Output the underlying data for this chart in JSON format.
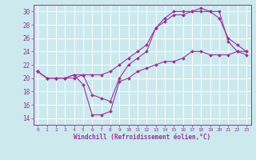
{
  "xlabel": "Windchill (Refroidissement éolien,°C)",
  "bg_color": "#cce9ee",
  "grid_color": "#ffffff",
  "line_color": "#993399",
  "xlim": [
    -0.5,
    23.5
  ],
  "ylim": [
    13,
    31
  ],
  "xticks": [
    0,
    1,
    2,
    3,
    4,
    5,
    6,
    7,
    8,
    9,
    10,
    11,
    12,
    13,
    14,
    15,
    16,
    17,
    18,
    19,
    20,
    21,
    22,
    23
  ],
  "yticks": [
    14,
    16,
    18,
    20,
    22,
    24,
    26,
    28,
    30
  ],
  "line1_x": [
    0,
    1,
    2,
    3,
    4,
    5,
    6,
    7,
    8,
    9,
    10,
    11,
    12,
    13,
    14,
    15,
    16,
    17,
    18,
    19,
    20,
    21,
    22,
    23
  ],
  "line1_y": [
    21,
    20,
    20,
    20,
    20,
    20.5,
    20.5,
    20.5,
    21,
    22,
    23,
    24,
    25,
    27.5,
    28.5,
    29.5,
    29.5,
    30,
    30,
    30,
    30,
    25.5,
    24,
    23.5
  ],
  "line2_x": [
    0,
    1,
    2,
    3,
    4,
    5,
    6,
    7,
    8,
    9,
    10,
    11,
    12,
    13,
    14,
    15,
    16,
    17,
    18,
    19,
    20,
    21,
    22,
    23
  ],
  "line2_y": [
    21,
    20,
    20,
    20,
    20.5,
    20.5,
    17.5,
    17,
    16.5,
    20,
    22,
    23,
    24,
    27.5,
    29,
    30,
    30,
    30,
    30.5,
    30,
    29,
    26,
    25,
    24
  ],
  "line3_x": [
    0,
    1,
    2,
    3,
    4,
    5,
    6,
    7,
    8,
    9,
    10,
    11,
    12,
    13,
    14,
    15,
    16,
    17,
    18,
    19,
    20,
    21,
    22,
    23
  ],
  "line3_y": [
    21,
    20,
    20,
    20,
    20.5,
    19,
    14.5,
    14.5,
    15,
    19.5,
    20,
    21,
    21.5,
    22,
    22.5,
    22.5,
    23,
    24,
    24,
    23.5,
    23.5,
    23.5,
    24,
    24
  ]
}
